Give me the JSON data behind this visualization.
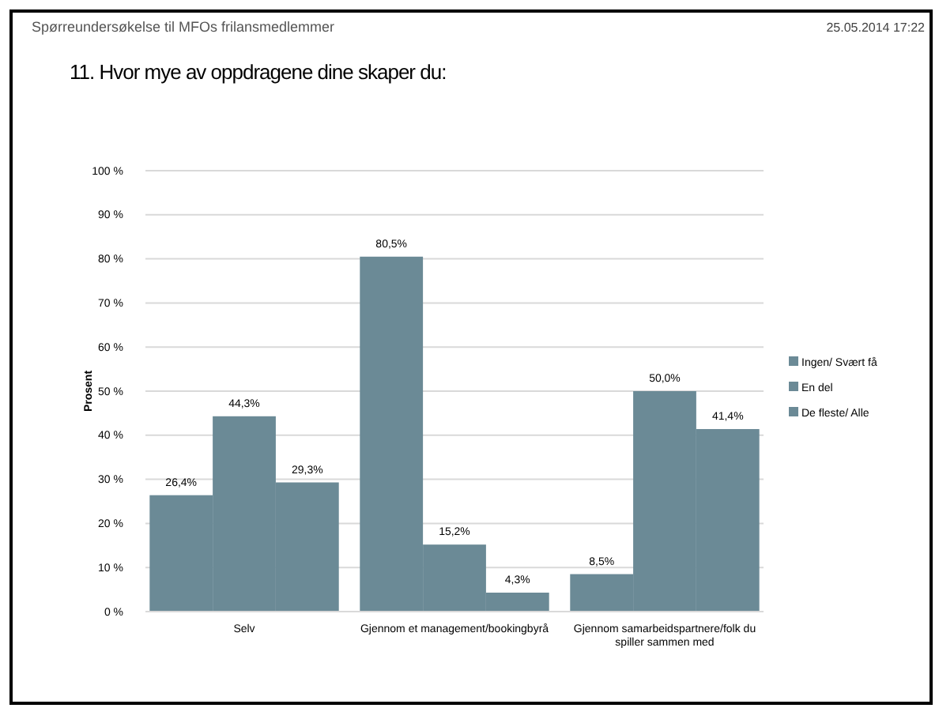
{
  "chart_data": {
    "type": "bar",
    "title": "11. Hvor mye av oppdragene dine skaper du:",
    "subtitle": "Spørreundersøkelse til MFOs frilansmedlemmer",
    "annotations": [
      "25.05.2014 17:22"
    ],
    "ylabel": "Prosent",
    "categories": [
      "Selv",
      "Gjennom et management/bookingbyrå",
      "Gjennom samarbeidspartnere/folk du spiller sammen med"
    ],
    "series": [
      {
        "name": "Ingen/ Svært få",
        "color": "#6b8a96",
        "values": [
          26.4,
          80.5,
          8.5
        ],
        "value_labels": [
          "26,4%",
          "80,5%",
          "8,5%"
        ]
      },
      {
        "name": "En del",
        "color": "#6b8a96",
        "values": [
          44.3,
          15.2,
          50.0
        ],
        "value_labels": [
          "44,3%",
          "15,2%",
          "50,0%"
        ]
      },
      {
        "name": "De fleste/ Alle",
        "color": "#6b8a96",
        "values": [
          29.3,
          4.3,
          41.4
        ],
        "value_labels": [
          "29,3%",
          "4,3%",
          "41,4%"
        ]
      }
    ],
    "ylim": [
      0,
      100
    ],
    "yticks": [
      {
        "value": 0,
        "label": "0 %"
      },
      {
        "value": 10,
        "label": "10 %"
      },
      {
        "value": 20,
        "label": "20 %"
      },
      {
        "value": 30,
        "label": "30 %"
      },
      {
        "value": 40,
        "label": "40 %"
      },
      {
        "value": 50,
        "label": "50 %"
      },
      {
        "value": 60,
        "label": "60 %"
      },
      {
        "value": 70,
        "label": "70 %"
      },
      {
        "value": 80,
        "label": "80 %"
      },
      {
        "value": 90,
        "label": "90 %"
      },
      {
        "value": 100,
        "label": "100 %"
      }
    ],
    "grid": "y",
    "legend": "right"
  }
}
